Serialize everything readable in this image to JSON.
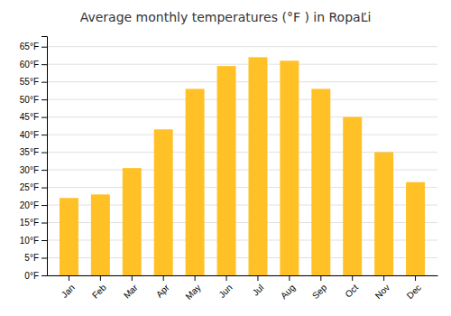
{
  "chart_data": {
    "type": "bar",
    "title": "Average monthly temperatures (°F ) in RopaĽi",
    "categories": [
      "Jan",
      "Feb",
      "Mar",
      "Apr",
      "May",
      "Jun",
      "Jul",
      "Aug",
      "Sep",
      "Oct",
      "Nov",
      "Dec"
    ],
    "values": [
      22.0,
      23.0,
      30.5,
      41.5,
      53.0,
      59.5,
      62.0,
      61.0,
      53.0,
      45.0,
      35.0,
      26.5
    ],
    "color": "#FFC125",
    "ylim": [
      0,
      68
    ],
    "yticks": [
      {
        "value": 0,
        "label": "0°F"
      },
      {
        "value": 5,
        "label": "5°F"
      },
      {
        "value": 10,
        "label": "10°F"
      },
      {
        "value": 15,
        "label": "15°F"
      },
      {
        "value": 20,
        "label": "20°F"
      },
      {
        "value": 25,
        "label": "25°F"
      },
      {
        "value": 30,
        "label": "30°F"
      },
      {
        "value": 35,
        "label": "35°F"
      },
      {
        "value": 40,
        "label": "40°F"
      },
      {
        "value": 45,
        "label": "45°F"
      },
      {
        "value": 50,
        "label": "50°F"
      },
      {
        "value": 55,
        "label": "55°F"
      },
      {
        "value": 60,
        "label": "60°F"
      },
      {
        "value": 65,
        "label": "65°F"
      }
    ],
    "grid": true
  }
}
